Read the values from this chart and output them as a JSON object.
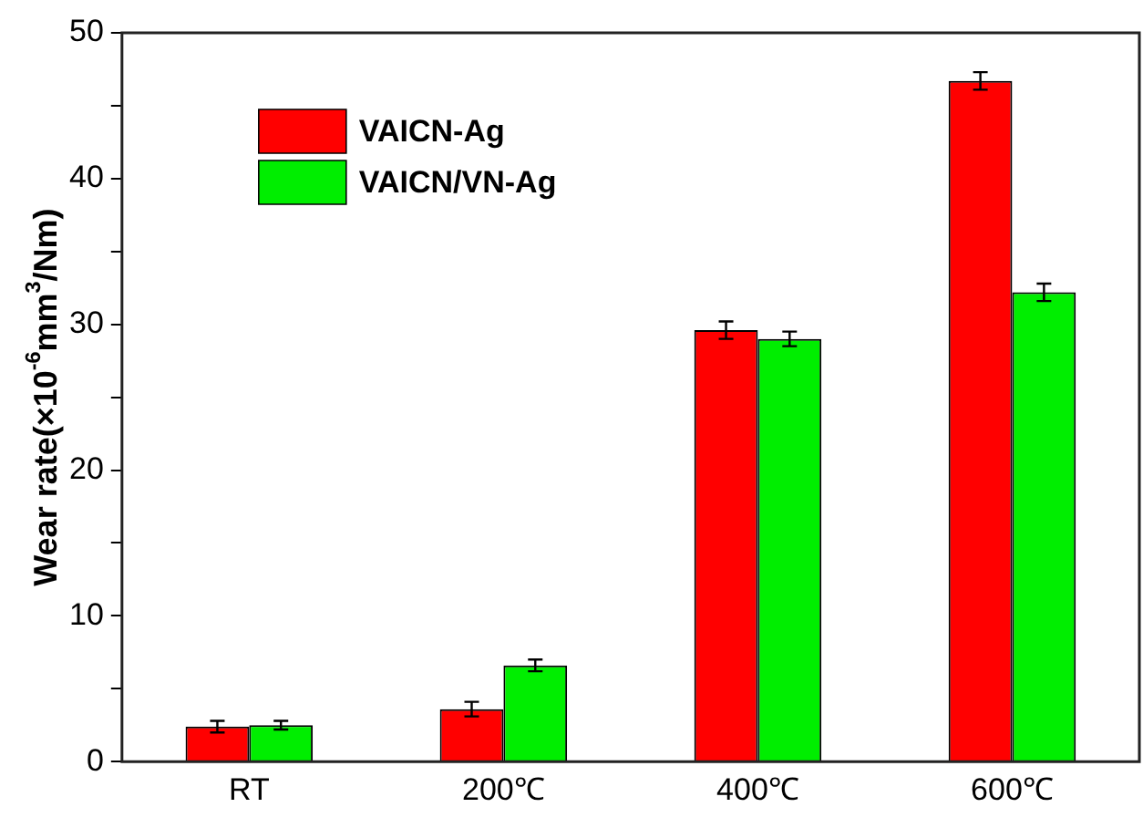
{
  "chart_data": {
    "type": "bar",
    "ylabel": "Wear rate(×10$^{-6}$mm$^{3}$/Nm)",
    "categories": [
      "RT",
      "200℃",
      "400℃",
      "600℃"
    ],
    "series": [
      {
        "name": "VAICN-Ag",
        "color": "#ff0000",
        "values": [
          2.4,
          3.6,
          29.6,
          46.7
        ],
        "errors": [
          0.4,
          0.5,
          0.6,
          0.6
        ]
      },
      {
        "name": "VAICN/VN-Ag",
        "color": "#00ee00",
        "values": [
          2.5,
          6.6,
          29.0,
          32.2
        ],
        "errors": [
          0.3,
          0.4,
          0.5,
          0.6
        ]
      }
    ],
    "ylim": [
      0,
      50
    ],
    "yticks": [
      0,
      {
        "value": 5,
        "label": null
      },
      10,
      {
        "value": 15,
        "label": null
      },
      20,
      {
        "value": 25,
        "label": null
      },
      30,
      {
        "value": 35,
        "label": null
      },
      40,
      {
        "value": 45,
        "label": null
      },
      50
    ],
    "grid": false,
    "legend": "top left"
  }
}
